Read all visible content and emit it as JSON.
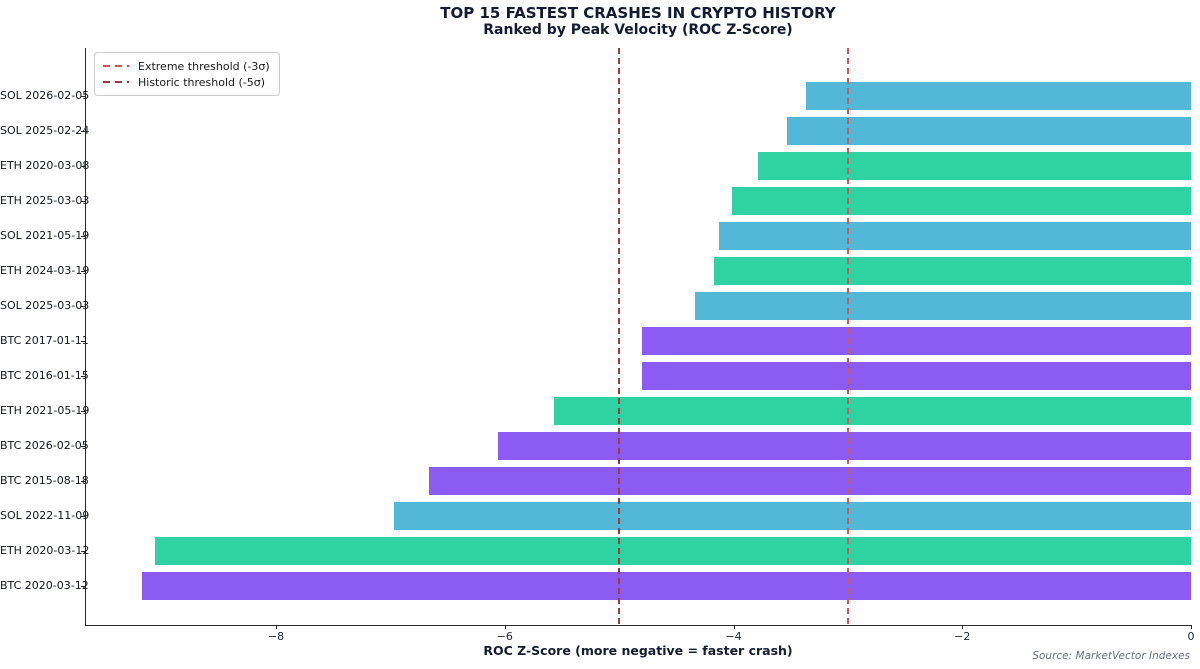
{
  "title": "TOP 15 FASTEST CRASHES IN CRYPTO HISTORY",
  "subtitle": "Ranked by Peak Velocity (ROC Z-Score)",
  "source": "Source: MarketVector Indexes",
  "legend": {
    "items": [
      {
        "label": "Extreme threshold (-3σ)"
      },
      {
        "label": "Historic threshold (-5σ)"
      }
    ]
  },
  "chart_data": {
    "type": "bar",
    "orientation": "horizontal",
    "title": "TOP 15 FASTEST CRASHES IN CRYPTO HISTORY",
    "subtitle": "Ranked by Peak Velocity (ROC Z-Score)",
    "xlabel": "ROC Z-Score (more negative = faster crash)",
    "xlim": [
      -9.67,
      0
    ],
    "grid": false,
    "legend_position": "upper left",
    "xticks": [
      {
        "value": -8,
        "label": "−8"
      },
      {
        "value": -6,
        "label": "−6"
      },
      {
        "value": -4,
        "label": "−4"
      },
      {
        "value": -2,
        "label": "−2"
      },
      {
        "value": 0,
        "label": "0"
      }
    ],
    "categories": [
      "SOL 2026-02-05",
      "SOL 2025-02-24",
      "ETH 2020-03-08",
      "ETH 2025-03-03",
      "SOL 2021-05-19",
      "ETH 2024-03-19",
      "SOL 2025-03-03",
      "BTC 2017-01-11",
      "BTC 2016-01-15",
      "ETH 2021-05-19",
      "BTC 2026-02-05",
      "BTC 2015-08-18",
      "SOL 2022-11-09",
      "ETH 2020-03-12",
      "BTC 2020-03-12"
    ],
    "values": [
      -3.37,
      -3.53,
      -3.79,
      -4.01,
      -4.13,
      -4.17,
      -4.34,
      -4.8,
      -4.8,
      -5.57,
      -6.06,
      -6.66,
      -6.97,
      -9.06,
      -9.17
    ],
    "asset_colors": {
      "SOL": "#53b7d7",
      "ETH": "#2fd3a1",
      "BTC": "#8c5bf2"
    },
    "thresholds": [
      {
        "name": "extreme",
        "label": "Extreme threshold (-3σ)",
        "value": -3,
        "color": "#d25757"
      },
      {
        "name": "historic",
        "label": "Historic threshold (-5σ)",
        "value": -5,
        "color": "#9a3d3d"
      }
    ]
  }
}
